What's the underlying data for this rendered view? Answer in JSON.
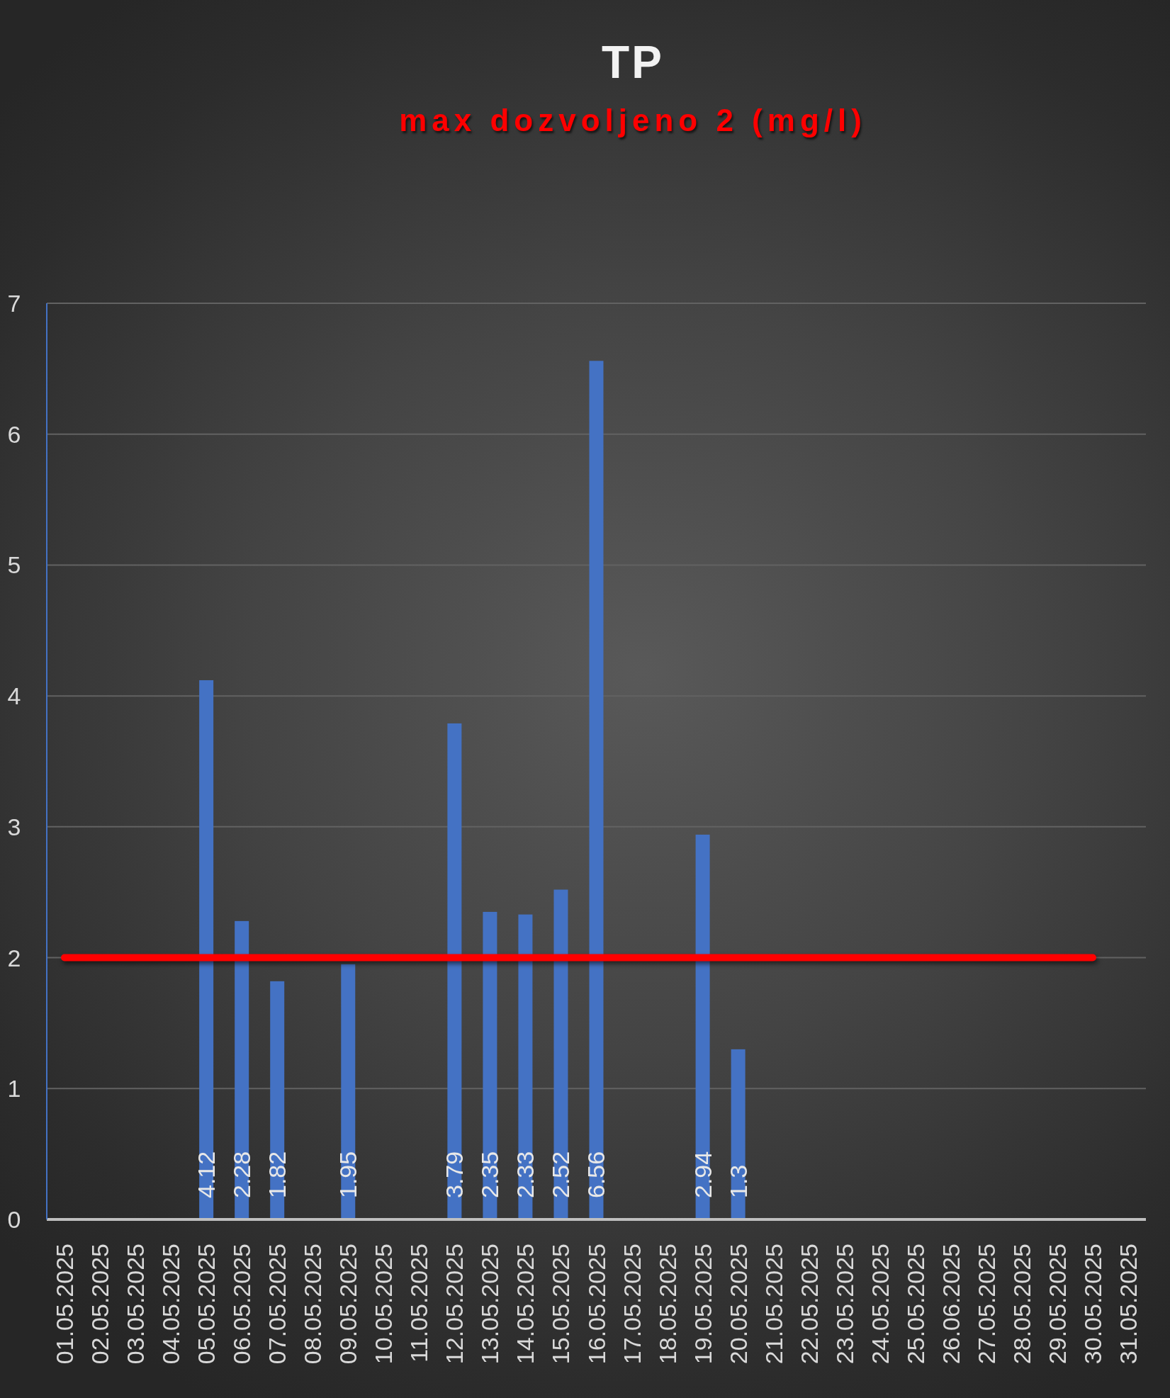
{
  "chart_data": {
    "type": "bar",
    "title": "TP",
    "subtitle": "max dozvoljeno 2 (mg/l)",
    "categories": [
      "01.05.2025",
      "02.05.2025",
      "03.05.2025",
      "04.05.2025",
      "05.05.2025",
      "06.05.2025",
      "07.05.2025",
      "08.05.2025",
      "09.05.2025",
      "10.05.2025",
      "11.05.2025",
      "12.05.2025",
      "13.05.2025",
      "14.05.2025",
      "15.05.2025",
      "16.05.2025",
      "17.05.2025",
      "18.05.2025",
      "19.05.2025",
      "20.05.2025",
      "21.05.2025",
      "22.05.2025",
      "23.05.2025",
      "24.05.2025",
      "25.05.2025",
      "26.06.2025",
      "27.05.2025",
      "28.05.2025",
      "29.05.2025",
      "30.05.2025",
      "31.05.2025"
    ],
    "series": [
      {
        "color": "#4472c4",
        "values": [
          null,
          null,
          null,
          null,
          4.12,
          2.28,
          1.82,
          null,
          1.95,
          null,
          null,
          3.79,
          2.35,
          2.33,
          2.52,
          6.56,
          null,
          null,
          2.94,
          1.3,
          null,
          null,
          null,
          null,
          null,
          null,
          null,
          null,
          null,
          null,
          null
        ],
        "value_labels": [
          null,
          null,
          null,
          null,
          "4.12",
          "2.28",
          "1.82",
          null,
          "1.95",
          null,
          null,
          "3.79",
          "2.35",
          "2.33",
          "2.52",
          "6.56",
          null,
          null,
          "2.94",
          "1.3",
          null,
          null,
          null,
          null,
          null,
          null,
          null,
          null,
          null,
          null,
          null
        ]
      },
      {
        "type": "line",
        "color": "#ff0000",
        "values": [
          2,
          2,
          2,
          2,
          2,
          2,
          2,
          2,
          2,
          2,
          2,
          2,
          2,
          2,
          2,
          2,
          2,
          2,
          2,
          2,
          2,
          2,
          2,
          2,
          2,
          2,
          2,
          2,
          2,
          2,
          null
        ]
      }
    ],
    "marker": "none",
    "line_style": "solid",
    "ylim": [
      0,
      7
    ],
    "yticks": [
      0,
      1,
      2,
      3,
      4,
      5,
      6,
      7
    ],
    "grid": "y"
  }
}
